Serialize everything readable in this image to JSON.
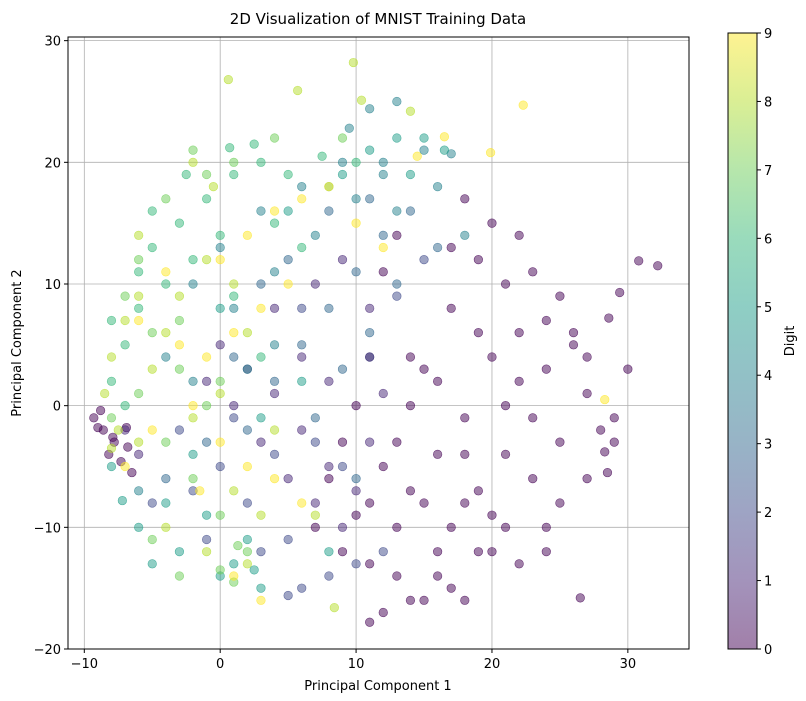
{
  "chart_data": {
    "type": "scatter",
    "title": "2D Visualization of MNIST Training Data",
    "xlabel": "Principal Component 1",
    "ylabel": "Principal Component 2",
    "xlim": [
      -11.2,
      34.5
    ],
    "ylim": [
      -20,
      30.3
    ],
    "xticks": [
      -10,
      0,
      10,
      20,
      30
    ],
    "yticks": [
      -20,
      -10,
      0,
      10,
      20,
      30
    ],
    "grid": true,
    "colormap": "viridis",
    "marker_alpha": 0.5,
    "colorbar": {
      "label": "Digit",
      "range": [
        0,
        9
      ],
      "ticks": [
        0,
        1,
        2,
        3,
        4,
        5,
        6,
        7,
        8,
        9
      ]
    },
    "series": [
      {
        "digit": 0,
        "color": "#440154",
        "points": [
          [
            14,
            -7
          ],
          [
            18,
            -4
          ],
          [
            22,
            2
          ],
          [
            25,
            -3
          ],
          [
            27,
            4
          ],
          [
            16,
            -12
          ],
          [
            13,
            -10
          ],
          [
            20,
            -9
          ],
          [
            23,
            -6
          ],
          [
            19,
            6
          ],
          [
            24,
            7
          ],
          [
            28,
            -2
          ],
          [
            15,
            -16
          ],
          [
            17,
            -15
          ],
          [
            21,
            0
          ],
          [
            26,
            6
          ],
          [
            30,
            3
          ],
          [
            32.2,
            11.5
          ],
          [
            30.8,
            11.9
          ],
          [
            29.4,
            9.3
          ],
          [
            28.6,
            7.2
          ],
          [
            27,
            -6
          ],
          [
            29,
            -3
          ],
          [
            28.5,
            -5.5
          ],
          [
            25,
            -8
          ],
          [
            26.5,
            -15.8
          ],
          [
            22,
            -13
          ],
          [
            21,
            -10
          ],
          [
            24,
            -10
          ],
          [
            12,
            -17
          ],
          [
            11,
            -17.8
          ],
          [
            14,
            -16
          ],
          [
            16,
            -14
          ],
          [
            19,
            -12
          ],
          [
            13,
            -3
          ],
          [
            15,
            3
          ],
          [
            17,
            8
          ],
          [
            19,
            12
          ],
          [
            20,
            15
          ],
          [
            22,
            14
          ],
          [
            21,
            10
          ],
          [
            23,
            11
          ],
          [
            25,
            9
          ],
          [
            26,
            5
          ],
          [
            27,
            1
          ],
          [
            29,
            -1
          ],
          [
            28.3,
            -3.8
          ],
          [
            24,
            -12
          ],
          [
            18,
            -16
          ],
          [
            13,
            -14
          ],
          [
            11,
            -13
          ],
          [
            9,
            -12
          ],
          [
            10,
            -9
          ],
          [
            12,
            -5
          ],
          [
            14,
            0
          ],
          [
            16,
            2
          ],
          [
            18,
            -1
          ],
          [
            20,
            4
          ],
          [
            22,
            6
          ],
          [
            24,
            3
          ],
          [
            23,
            -1
          ],
          [
            21,
            -4
          ],
          [
            19,
            -7
          ],
          [
            17,
            -10
          ],
          [
            15,
            -8
          ],
          [
            20,
            -12
          ],
          [
            18,
            -8
          ],
          [
            16,
            -4
          ],
          [
            14,
            4
          ],
          [
            17,
            13
          ],
          [
            18,
            17
          ],
          [
            12,
            11
          ],
          [
            13,
            14
          ],
          [
            11,
            4
          ],
          [
            10,
            0
          ],
          [
            9,
            -3
          ],
          [
            8,
            -6
          ],
          [
            11,
            -8
          ],
          [
            7,
            -10
          ],
          [
            -9.3,
            -1
          ],
          [
            -8.6,
            -2
          ],
          [
            -7.8,
            -3
          ],
          [
            -8.2,
            -4
          ],
          [
            -7.3,
            -4.6
          ],
          [
            -6.8,
            -3.4
          ],
          [
            -6.5,
            -5.5
          ],
          [
            -9,
            -1.8
          ],
          [
            -8.8,
            -0.4
          ],
          [
            -7.9,
            -2.6
          ],
          [
            -6.9,
            -1.8
          ]
        ]
      },
      {
        "digit": 1,
        "color": "#482878",
        "points": [
          [
            0,
            5
          ],
          [
            2,
            3
          ],
          [
            4,
            1
          ],
          [
            6,
            -2
          ],
          [
            8,
            -5
          ],
          [
            10,
            -7
          ],
          [
            3,
            -3
          ],
          [
            5,
            -6
          ],
          [
            7,
            -8
          ],
          [
            9,
            -10
          ],
          [
            1,
            0
          ],
          [
            -1,
            2
          ],
          [
            11,
            -3
          ],
          [
            12,
            1
          ],
          [
            6,
            4
          ],
          [
            8,
            2
          ],
          [
            -7,
            -2
          ],
          [
            -6,
            -4
          ],
          [
            4,
            8
          ],
          [
            7,
            10
          ],
          [
            9,
            12
          ],
          [
            11,
            8
          ]
        ]
      },
      {
        "digit": 2,
        "color": "#3e4989",
        "points": [
          [
            -3,
            -2
          ],
          [
            0,
            -5
          ],
          [
            2,
            -8
          ],
          [
            5,
            -11
          ],
          [
            8,
            -14
          ],
          [
            -2,
            -7
          ],
          [
            3,
            -12
          ],
          [
            6,
            -15
          ],
          [
            10,
            -13
          ],
          [
            12,
            -12
          ],
          [
            4,
            -4
          ],
          [
            1,
            -1
          ],
          [
            7,
            -3
          ],
          [
            9,
            -5
          ],
          [
            11,
            4
          ],
          [
            13,
            9
          ],
          [
            15,
            12
          ],
          [
            6,
            8
          ],
          [
            -5,
            -8
          ],
          [
            5,
            -15.6
          ],
          [
            -1,
            -11
          ]
        ]
      },
      {
        "digit": 3,
        "color": "#31688e",
        "points": [
          [
            4,
            2
          ],
          [
            6,
            5
          ],
          [
            8,
            8
          ],
          [
            10,
            11
          ],
          [
            12,
            14
          ],
          [
            2,
            -2
          ],
          [
            7,
            -1
          ],
          [
            9,
            3
          ],
          [
            11,
            6
          ],
          [
            13,
            10
          ],
          [
            5,
            12
          ],
          [
            8,
            16
          ],
          [
            14,
            16
          ],
          [
            16,
            13
          ],
          [
            3,
            10
          ],
          [
            11,
            17
          ],
          [
            -4,
            -6
          ],
          [
            -1,
            -3
          ],
          [
            1,
            4
          ],
          [
            10,
            -6
          ]
        ]
      },
      {
        "digit": 4,
        "color": "#26828e",
        "points": [
          [
            -2,
            10
          ],
          [
            0,
            13
          ],
          [
            3,
            16
          ],
          [
            6,
            18
          ],
          [
            9,
            20
          ],
          [
            1,
            8
          ],
          [
            4,
            11
          ],
          [
            7,
            14
          ],
          [
            10,
            17
          ],
          [
            12,
            19
          ],
          [
            11,
            24.4
          ],
          [
            13,
            25
          ],
          [
            12,
            20
          ],
          [
            15,
            21
          ],
          [
            17,
            20.7
          ],
          [
            16,
            18
          ],
          [
            -4,
            4
          ],
          [
            -2,
            2
          ],
          [
            13,
            16
          ],
          [
            18,
            14
          ],
          [
            9.5,
            22.8
          ],
          [
            4,
            5
          ],
          [
            2,
            3
          ],
          [
            -6,
            -7
          ]
        ]
      },
      {
        "digit": 5,
        "color": "#1f9e89",
        "points": [
          [
            -6,
            -10
          ],
          [
            -3,
            -12
          ],
          [
            0,
            -14
          ],
          [
            3,
            -15
          ],
          [
            -8,
            -5
          ],
          [
            -5,
            -13
          ],
          [
            2,
            -11
          ],
          [
            -4,
            -8
          ],
          [
            -1,
            -9
          ],
          [
            1,
            -13
          ],
          [
            8,
            -12
          ],
          [
            13,
            22
          ],
          [
            15,
            22
          ],
          [
            16.5,
            21
          ],
          [
            14,
            19
          ],
          [
            6,
            2
          ],
          [
            3,
            -1
          ],
          [
            -2,
            -4
          ],
          [
            0,
            8
          ],
          [
            5,
            16
          ],
          [
            9,
            19
          ],
          [
            11,
            21
          ],
          [
            -7.2,
            -7.8
          ],
          [
            2.5,
            -13.5
          ]
        ]
      },
      {
        "digit": 6,
        "color": "#35b779",
        "points": [
          [
            -4,
            10
          ],
          [
            -6,
            8
          ],
          [
            -7,
            5
          ],
          [
            -8,
            2
          ],
          [
            -5,
            13
          ],
          [
            -3,
            15
          ],
          [
            -1,
            17
          ],
          [
            1,
            19
          ],
          [
            3,
            20
          ],
          [
            5,
            19
          ],
          [
            -2,
            12
          ],
          [
            0,
            14
          ],
          [
            -6,
            11
          ],
          [
            -8,
            7
          ],
          [
            -7,
            0
          ],
          [
            4,
            15
          ],
          [
            6,
            13
          ],
          [
            8,
            18
          ],
          [
            10,
            20
          ],
          [
            0.7,
            21.2
          ],
          [
            2.5,
            21.5
          ],
          [
            7.5,
            20.5
          ],
          [
            -5,
            16
          ],
          [
            -2.5,
            19
          ],
          [
            3,
            4
          ],
          [
            1,
            9
          ]
        ]
      },
      {
        "digit": 7,
        "color": "#6ece58",
        "points": [
          [
            -7,
            9
          ],
          [
            -5,
            6
          ],
          [
            -3,
            3
          ],
          [
            -1,
            0
          ],
          [
            -4,
            -3
          ],
          [
            -2,
            -6
          ],
          [
            0,
            -9
          ],
          [
            2,
            -12
          ],
          [
            -6,
            1
          ],
          [
            -8,
            -1
          ],
          [
            -5,
            -11
          ],
          [
            -3,
            -14
          ],
          [
            0,
            -13.5
          ],
          [
            1,
            -14.5
          ],
          [
            -6,
            12
          ],
          [
            -4,
            17
          ],
          [
            -1,
            19
          ],
          [
            1,
            20
          ],
          [
            4,
            22
          ],
          [
            -2,
            21
          ],
          [
            9,
            22
          ],
          [
            -3,
            7
          ],
          [
            0,
            2
          ],
          [
            1.3,
            -11.5
          ]
        ]
      },
      {
        "digit": 8,
        "color": "#b5de2b",
        "points": [
          [
            -8,
            4
          ],
          [
            -7,
            7
          ],
          [
            -6,
            9
          ],
          [
            -8.5,
            1
          ],
          [
            -7.5,
            -2
          ],
          [
            -5,
            3
          ],
          [
            -4,
            6
          ],
          [
            -3,
            9
          ],
          [
            -2,
            -1
          ],
          [
            0,
            1
          ],
          [
            -6,
            -3
          ],
          [
            -8,
            -3.5
          ],
          [
            -4,
            -10
          ],
          [
            -1,
            -12
          ],
          [
            2,
            -13
          ],
          [
            0.6,
            26.8
          ],
          [
            5.7,
            25.9
          ],
          [
            9.8,
            28.2
          ],
          [
            14,
            24.2
          ],
          [
            10.4,
            25.1
          ],
          [
            -2,
            20
          ],
          [
            -0.5,
            18
          ],
          [
            1,
            10
          ],
          [
            2,
            6
          ],
          [
            -1,
            12
          ],
          [
            1,
            -7
          ],
          [
            3,
            -9
          ],
          [
            4,
            -2
          ],
          [
            8.4,
            -16.6
          ],
          [
            7,
            -9
          ],
          [
            -6,
            14
          ]
        ]
      },
      {
        "digit": 9,
        "color": "#fde725",
        "points": [
          [
            -3,
            5
          ],
          [
            -1,
            4
          ],
          [
            1,
            6
          ],
          [
            3,
            8
          ],
          [
            5,
            10
          ],
          [
            -2,
            0
          ],
          [
            0,
            -3
          ],
          [
            2,
            -5
          ],
          [
            4,
            -6
          ],
          [
            6,
            -8
          ],
          [
            0,
            12
          ],
          [
            2,
            14
          ],
          [
            4,
            16
          ],
          [
            6,
            17
          ],
          [
            8,
            18
          ],
          [
            22.3,
            24.7
          ],
          [
            19.9,
            20.8
          ],
          [
            16.5,
            22.1
          ],
          [
            14.5,
            20.5
          ],
          [
            -5,
            -2
          ],
          [
            -7,
            -5
          ],
          [
            1,
            -14
          ],
          [
            3,
            -16
          ],
          [
            -6,
            7
          ],
          [
            -4,
            11
          ],
          [
            10,
            15
          ],
          [
            12,
            13
          ],
          [
            28.3,
            0.5
          ],
          [
            -1.5,
            -7
          ]
        ]
      }
    ]
  }
}
